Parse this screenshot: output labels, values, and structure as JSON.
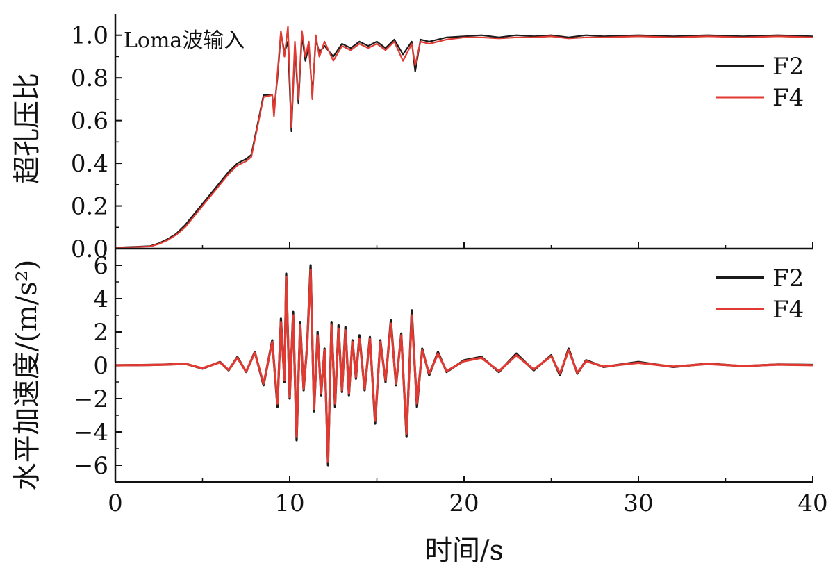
{
  "chart_data": [
    {
      "type": "line",
      "annotation": "Loma波输入",
      "ylabel": "超孔压比",
      "xlim": [
        0,
        40
      ],
      "ylim": [
        0,
        1.1
      ],
      "yticks": [
        0.0,
        0.2,
        0.4,
        0.6,
        0.8,
        1.0
      ],
      "ytick_labels": [
        "0.0",
        "0.2",
        "0.4",
        "0.6",
        "0.8",
        "1.0"
      ],
      "legend": {
        "position": "top-right"
      },
      "series": [
        {
          "name": "F2",
          "color": "#1a1a1a",
          "x": [
            0,
            1,
            2,
            2.5,
            3,
            3.5,
            4,
            4.5,
            5,
            5.5,
            6,
            6.5,
            7,
            7.5,
            7.8,
            8,
            8.5,
            9,
            9.1,
            9.3,
            9.5,
            9.7,
            9.9,
            10.1,
            10.3,
            10.5,
            10.7,
            10.9,
            11.1,
            11.3,
            11.5,
            11.7,
            12,
            12.5,
            13,
            13.5,
            14,
            14.5,
            15,
            15.5,
            16,
            16.5,
            17,
            17.2,
            17.5,
            18,
            19,
            20,
            21,
            22,
            23,
            24,
            25,
            26,
            27,
            28,
            30,
            32,
            34,
            36,
            38,
            40
          ],
          "values": [
            0.005,
            0.008,
            0.012,
            0.025,
            0.045,
            0.07,
            0.11,
            0.16,
            0.21,
            0.26,
            0.31,
            0.36,
            0.4,
            0.42,
            0.44,
            0.52,
            0.72,
            0.72,
            0.65,
            0.8,
            1.01,
            0.92,
            0.97,
            0.55,
            0.95,
            0.68,
            1.0,
            0.88,
            0.95,
            0.72,
            0.98,
            0.92,
            0.95,
            0.9,
            0.96,
            0.94,
            0.97,
            0.95,
            0.97,
            0.94,
            0.98,
            0.91,
            0.97,
            0.83,
            0.98,
            0.97,
            0.99,
            0.995,
            1.0,
            0.99,
            1.0,
            0.995,
            1.0,
            0.99,
            1.0,
            0.995,
            1.0,
            0.995,
            1.0,
            0.995,
            1.0,
            0.995
          ]
        },
        {
          "name": "F4",
          "color": "#e03a32",
          "x": [
            0,
            1,
            2,
            2.5,
            3,
            3.5,
            4,
            4.5,
            5,
            5.5,
            6,
            6.5,
            7,
            7.5,
            7.8,
            8,
            8.5,
            9,
            9.1,
            9.3,
            9.5,
            9.7,
            9.9,
            10.1,
            10.3,
            10.5,
            10.7,
            10.9,
            11.1,
            11.3,
            11.5,
            11.7,
            12,
            12.5,
            13,
            13.5,
            14,
            14.5,
            15,
            15.5,
            16,
            16.5,
            17,
            17.2,
            17.5,
            18,
            19,
            20,
            21,
            22,
            23,
            24,
            25,
            26,
            27,
            28,
            30,
            32,
            34,
            36,
            38,
            40
          ],
          "values": [
            0.004,
            0.007,
            0.01,
            0.022,
            0.04,
            0.065,
            0.1,
            0.15,
            0.2,
            0.25,
            0.3,
            0.35,
            0.39,
            0.41,
            0.43,
            0.51,
            0.71,
            0.72,
            0.62,
            0.82,
            1.02,
            0.9,
            1.04,
            0.57,
            0.97,
            0.7,
            1.02,
            0.9,
            0.97,
            0.7,
            1.0,
            0.9,
            0.97,
            0.88,
            0.95,
            0.93,
            0.96,
            0.94,
            0.96,
            0.93,
            0.97,
            0.88,
            0.96,
            0.86,
            0.97,
            0.96,
            0.98,
            0.99,
            0.99,
            0.985,
            0.99,
            0.99,
            0.995,
            0.985,
            0.99,
            0.99,
            0.995,
            0.99,
            0.995,
            0.99,
            0.995,
            0.99
          ]
        }
      ]
    },
    {
      "type": "line",
      "xlabel": "时间/s",
      "ylabel": "水平加速度/(m/s²)",
      "xlim": [
        0,
        40
      ],
      "ylim": [
        -7,
        7
      ],
      "xticks": [
        0,
        10,
        20,
        30,
        40
      ],
      "xtick_labels": [
        "0",
        "10",
        "20",
        "30",
        "40"
      ],
      "yticks": [
        -6,
        -4,
        -2,
        0,
        2,
        4,
        6
      ],
      "ytick_labels": [
        "−6",
        "−4",
        "−2",
        "0",
        "2",
        "4",
        "6"
      ],
      "legend": {
        "position": "top-right"
      },
      "series": [
        {
          "name": "F2",
          "color": "#1a1a1a",
          "x": [
            0,
            2,
            3,
            4,
            5,
            6,
            6.5,
            7,
            7.5,
            8,
            8.5,
            9,
            9.3,
            9.5,
            9.7,
            9.8,
            10,
            10.2,
            10.4,
            10.6,
            10.8,
            11,
            11.2,
            11.4,
            11.6,
            11.8,
            12,
            12.2,
            12.4,
            12.6,
            12.8,
            13,
            13.2,
            13.4,
            13.6,
            13.8,
            14,
            14.3,
            14.6,
            14.9,
            15.2,
            15.5,
            15.8,
            16.1,
            16.4,
            16.7,
            17,
            17.3,
            17.6,
            18,
            18.5,
            19,
            20,
            21,
            22,
            23,
            24,
            25,
            25.5,
            26,
            26.5,
            27,
            28,
            30,
            32,
            34,
            36,
            38,
            40
          ],
          "values": [
            0,
            0.02,
            0.05,
            0.1,
            -0.2,
            0.2,
            -0.3,
            0.5,
            -0.4,
            0.8,
            -1.2,
            1.5,
            -2.5,
            2.8,
            -1.0,
            5.5,
            -2.0,
            3.2,
            -4.5,
            2.6,
            -1.5,
            1.2,
            6.0,
            -2.8,
            2.0,
            -1.8,
            1.0,
            -6.0,
            2.6,
            -2.5,
            2.4,
            -1.6,
            2.3,
            -1.8,
            1.5,
            -0.8,
            1.8,
            -1.5,
            1.7,
            -3.5,
            1.5,
            -1.0,
            2.7,
            -1.2,
            1.9,
            -4.3,
            3.3,
            -2.5,
            1.0,
            -0.6,
            0.8,
            -0.4,
            0.3,
            0.5,
            -0.4,
            0.7,
            -0.3,
            0.6,
            -0.6,
            1.0,
            -0.5,
            0.3,
            -0.1,
            0.2,
            -0.1,
            0.1,
            -0.05,
            0.05,
            0.02
          ]
        },
        {
          "name": "F4",
          "color": "#e03a32",
          "x": [
            0,
            2,
            3,
            4,
            5,
            6,
            6.5,
            7,
            7.5,
            8,
            8.5,
            9,
            9.3,
            9.5,
            9.7,
            9.8,
            10,
            10.2,
            10.4,
            10.6,
            10.8,
            11,
            11.2,
            11.4,
            11.6,
            11.8,
            12,
            12.2,
            12.4,
            12.6,
            12.8,
            13,
            13.2,
            13.4,
            13.6,
            13.8,
            14,
            14.3,
            14.6,
            14.9,
            15.2,
            15.5,
            15.8,
            16.1,
            16.4,
            16.7,
            17,
            17.3,
            17.6,
            18,
            18.5,
            19,
            20,
            21,
            22,
            23,
            24,
            25,
            25.5,
            26,
            26.5,
            27,
            28,
            30,
            32,
            34,
            36,
            38,
            40
          ],
          "values": [
            0,
            0.02,
            0.04,
            0.09,
            -0.18,
            0.18,
            -0.28,
            0.45,
            -0.38,
            0.75,
            -1.1,
            1.4,
            -2.3,
            2.6,
            -0.9,
            5.3,
            -1.9,
            3.0,
            -4.3,
            2.4,
            -1.4,
            1.1,
            5.7,
            -2.6,
            1.8,
            -1.7,
            0.9,
            -5.8,
            2.4,
            -2.3,
            2.2,
            -1.5,
            2.1,
            -1.7,
            1.4,
            -0.7,
            1.6,
            -1.4,
            1.6,
            -3.3,
            1.4,
            -0.9,
            2.5,
            -1.1,
            1.8,
            -4.1,
            3.0,
            -2.3,
            0.9,
            -0.5,
            0.7,
            -0.35,
            0.25,
            0.45,
            -0.35,
            0.6,
            -0.25,
            0.55,
            -0.5,
            0.9,
            -0.45,
            0.25,
            -0.08,
            0.15,
            -0.08,
            0.08,
            -0.04,
            0.04,
            0.01
          ]
        }
      ]
    }
  ]
}
